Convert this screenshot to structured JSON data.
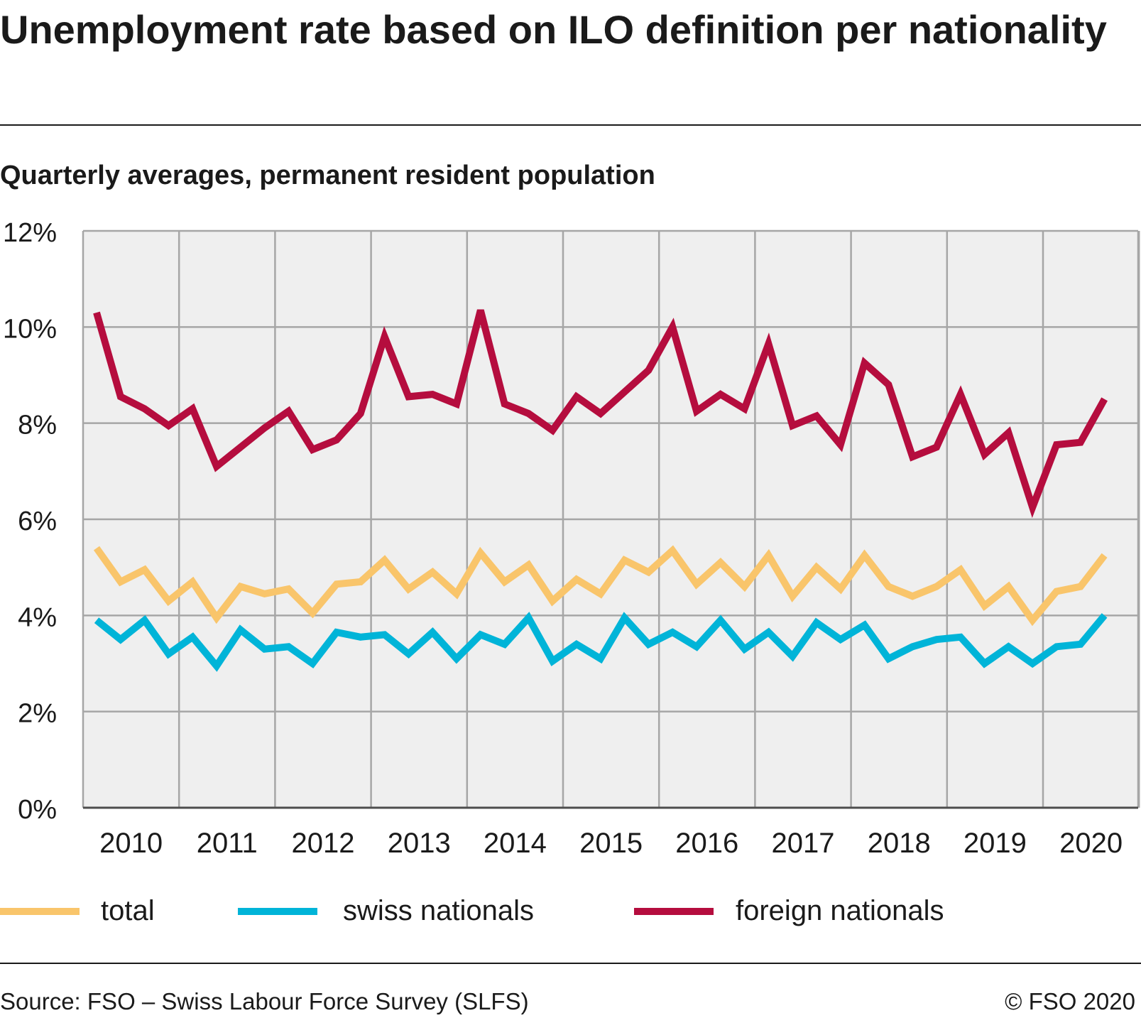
{
  "header": {
    "title": "Unemployment rate based on ILO definition per nationality",
    "subtitle": "Quarterly averages, permanent resident population"
  },
  "footer": {
    "source": "Source: FSO – Swiss Labour Force Survey (SLFS)",
    "copyright": "© FSO 2020"
  },
  "legend": [
    {
      "label": "total",
      "color": "#f9c56b"
    },
    {
      "label": "swiss nationals",
      "color": "#00b4d8"
    },
    {
      "label": "foreign nationals",
      "color": "#b50d3e"
    }
  ],
  "chart_data": {
    "type": "line",
    "title": "Unemployment rate based on ILO definition per nationality",
    "subtitle": "Quarterly averages, permanent resident population",
    "xlabel": "",
    "ylabel": "",
    "ylim": [
      0,
      12
    ],
    "y_ticks": [
      "0%",
      "2%",
      "4%",
      "6%",
      "8%",
      "10%",
      "12%"
    ],
    "year_labels": [
      "2010",
      "2011",
      "2012",
      "2013",
      "2014",
      "2015",
      "2016",
      "2017",
      "2018",
      "2019",
      "2020"
    ],
    "x": [
      "2010 Q1",
      "2010 Q2",
      "2010 Q3",
      "2010 Q4",
      "2011 Q1",
      "2011 Q2",
      "2011 Q3",
      "2011 Q4",
      "2012 Q1",
      "2012 Q2",
      "2012 Q3",
      "2012 Q4",
      "2013 Q1",
      "2013 Q2",
      "2013 Q3",
      "2013 Q4",
      "2014 Q1",
      "2014 Q2",
      "2014 Q3",
      "2014 Q4",
      "2015 Q1",
      "2015 Q2",
      "2015 Q3",
      "2015 Q4",
      "2016 Q1",
      "2016 Q2",
      "2016 Q3",
      "2016 Q4",
      "2017 Q1",
      "2017 Q2",
      "2017 Q3",
      "2017 Q4",
      "2018 Q1",
      "2018 Q2",
      "2018 Q3",
      "2018 Q4",
      "2019 Q1",
      "2019 Q2",
      "2019 Q3",
      "2019 Q4",
      "2020 Q1",
      "2020 Q2",
      "2020 Q3"
    ],
    "grid": true,
    "legend_position": "bottom",
    "series": [
      {
        "name": "total",
        "color": "#f9c56b",
        "values": [
          5.4,
          4.7,
          4.95,
          4.3,
          4.7,
          3.95,
          4.6,
          4.45,
          4.55,
          4.05,
          4.65,
          4.7,
          5.15,
          4.55,
          4.9,
          4.45,
          5.3,
          4.7,
          5.05,
          4.3,
          4.75,
          4.45,
          5.15,
          4.9,
          5.35,
          4.65,
          5.1,
          4.6,
          5.25,
          4.4,
          5.0,
          4.55,
          5.25,
          4.6,
          4.4,
          4.6,
          4.95,
          4.2,
          4.6,
          3.9,
          4.5,
          4.6,
          5.25
        ]
      },
      {
        "name": "swiss nationals",
        "color": "#00b4d8",
        "values": [
          3.9,
          3.5,
          3.9,
          3.2,
          3.55,
          2.95,
          3.7,
          3.3,
          3.35,
          3.0,
          3.65,
          3.55,
          3.6,
          3.2,
          3.65,
          3.1,
          3.6,
          3.4,
          3.95,
          3.05,
          3.4,
          3.1,
          3.95,
          3.4,
          3.65,
          3.35,
          3.9,
          3.3,
          3.65,
          3.15,
          3.85,
          3.5,
          3.8,
          3.1,
          3.35,
          3.5,
          3.55,
          3.0,
          3.35,
          3.0,
          3.35,
          3.4,
          4.0
        ]
      },
      {
        "name": "foreign nationals",
        "color": "#b50d3e",
        "values": [
          10.3,
          8.55,
          8.3,
          7.95,
          8.3,
          7.1,
          7.5,
          7.9,
          8.25,
          7.45,
          7.65,
          8.2,
          9.8,
          8.55,
          8.6,
          8.4,
          10.35,
          8.4,
          8.2,
          7.85,
          8.55,
          8.2,
          8.65,
          9.1,
          10.0,
          8.25,
          8.6,
          8.3,
          9.65,
          7.95,
          8.15,
          7.55,
          9.25,
          8.8,
          7.3,
          7.5,
          8.6,
          7.35,
          7.8,
          6.25,
          7.55,
          7.6,
          8.5
        ]
      }
    ]
  }
}
